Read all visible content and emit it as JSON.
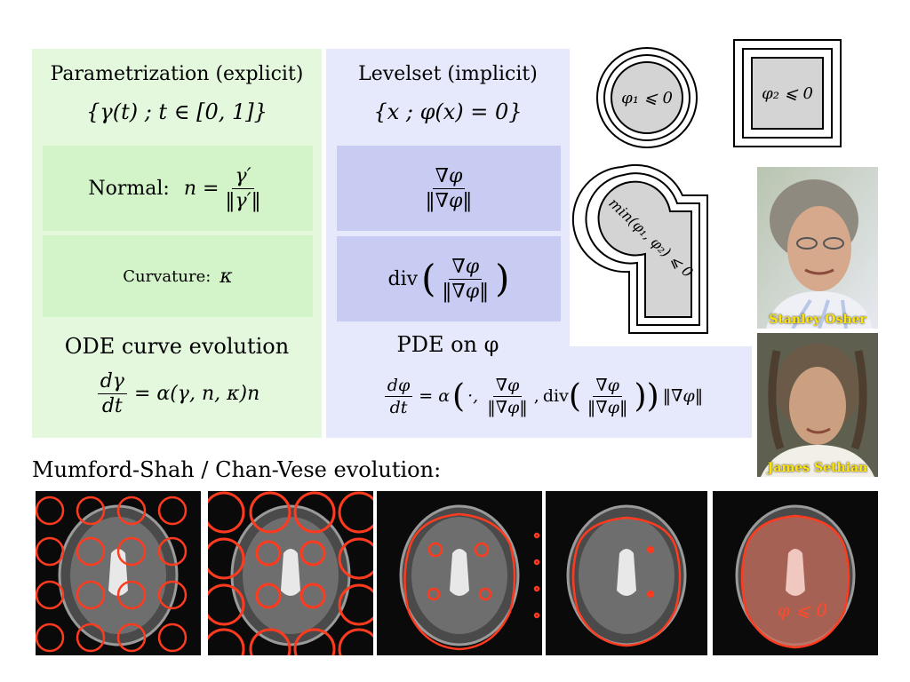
{
  "explicit": {
    "title": "Parametrization (explicit)",
    "set": "{γ(t) ; t ∈ [0, 1]}",
    "normal_label": "Normal:",
    "normal_lhs": "n =",
    "normal_num": "γ′",
    "normal_den": "‖γ′‖",
    "curvature_label": "Curvature:",
    "curvature_symbol": "κ",
    "ode_title": "ODE curve evolution",
    "ode_num": "dγ",
    "ode_den": "dt",
    "ode_rhs": "= α(γ, n, κ)n"
  },
  "implicit": {
    "title": "Levelset (implicit)",
    "set": "{x ; φ(x) = 0}",
    "normal_num": "∇φ",
    "normal_den": "‖∇φ‖",
    "div_label": "div",
    "pde_title": "PDE on φ",
    "pde_num": "dφ",
    "pde_den": "dt",
    "pde_eq": "= α",
    "pde_dot": "·,",
    "pde_comma": ",",
    "pde_div": "div",
    "pde_tail": "‖∇φ‖"
  },
  "shapes": {
    "circle_label": "φ₁ ⩽ 0",
    "square_label": "φ₂ ⩽ 0",
    "union_label": "min(φ₁, φ₂) ⩽ 0"
  },
  "photos": [
    {
      "caption": "Stanley Osher"
    },
    {
      "caption": "James Sethian"
    }
  ],
  "evolution": {
    "title": "Mumford-Shah / Chan-Vese evolution:",
    "final_label": "φ ⩽ 0"
  },
  "colors": {
    "green_panel": "#e4f8de",
    "green_box": "#d2f4c8",
    "blue_panel": "#e6e8fb",
    "blue_box": "#c8ccf3",
    "contour": "#ff3b1f",
    "caption": "#ffe500"
  }
}
